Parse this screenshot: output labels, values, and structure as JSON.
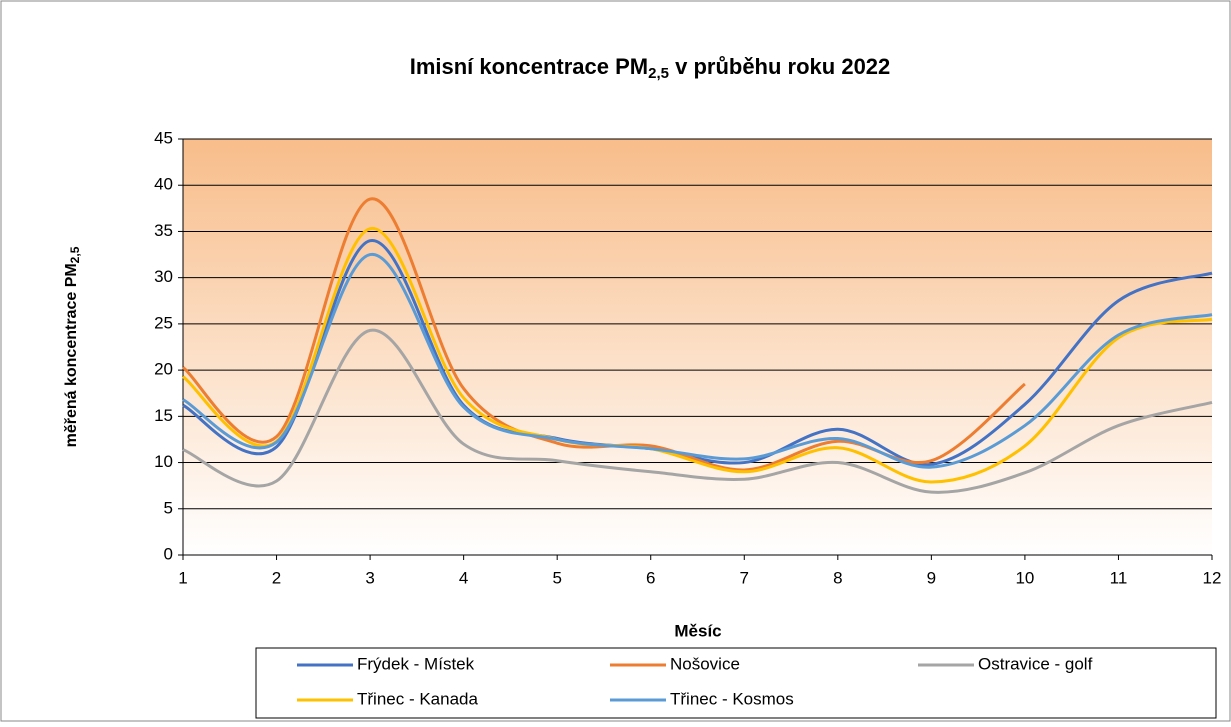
{
  "chart_data": {
    "type": "line",
    "title": {
      "main": "Imisní koncentrace PM",
      "subscript": "2,5",
      "rest": " v průběhu roku 2022"
    },
    "y_label": {
      "main": "měřená koncentrace PM",
      "subscript": "2,5"
    },
    "x_label": "Měsíc",
    "x": [
      1,
      2,
      3,
      4,
      5,
      6,
      7,
      8,
      9,
      10,
      11,
      12
    ],
    "xlim": [
      1,
      12
    ],
    "xticks": [
      1,
      2,
      3,
      4,
      5,
      6,
      7,
      8,
      9,
      10,
      11,
      12
    ],
    "ylim": [
      0,
      45
    ],
    "yticks": [
      0,
      5,
      10,
      15,
      20,
      25,
      30,
      35,
      40,
      45
    ],
    "grid": true,
    "legend": "bottom",
    "series": [
      {
        "name": "Frýdek - Místek",
        "color": "#4472c4",
        "values": [
          16.2,
          11.7,
          34,
          16.2,
          12.6,
          11.5,
          10,
          13.6,
          9.8,
          16.3,
          27.5,
          30.5
        ]
      },
      {
        "name": "Nošovice",
        "color": "#ed7d31",
        "values": [
          20.3,
          12.8,
          38.5,
          18,
          12.1,
          11.8,
          9.2,
          12.3,
          10.2,
          18.5,
          null,
          null
        ]
      },
      {
        "name": "Ostravice - golf",
        "color": "#a5a5a5",
        "values": [
          11.4,
          8,
          24.3,
          12,
          10.2,
          9,
          8.2,
          10,
          6.8,
          8.9,
          14,
          16.5
        ]
      },
      {
        "name": "Třinec - Kanada",
        "color": "#ffc000",
        "values": [
          19.3,
          12.3,
          35.3,
          17,
          12.5,
          11.5,
          9,
          11.6,
          7.9,
          11.8,
          23.5,
          25.5
        ]
      },
      {
        "name": "Třinec - Kosmos",
        "color": "#5b9bd5",
        "values": [
          16.8,
          12.2,
          32.5,
          16,
          12.5,
          11.5,
          10.4,
          12.6,
          9.5,
          14,
          23.8,
          26
        ]
      }
    ]
  }
}
